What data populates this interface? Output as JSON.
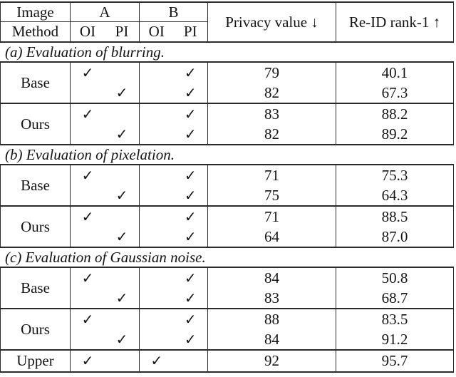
{
  "header": {
    "image_label": "Image",
    "method_label": "Method",
    "group_a_label": "A",
    "group_b_label": "B",
    "oi_label": "OI",
    "pi_label": "PI",
    "privacy_label": "Privacy value ↓",
    "reid_label": "Re-ID rank-1 ↑"
  },
  "sections": [
    {
      "label": "(a) Evaluation of blurring.",
      "groups": [
        {
          "method": "Base",
          "rows": [
            {
              "a_oi": "✓",
              "a_pi": "",
              "b_oi": "",
              "b_pi": "✓",
              "privacy": "79",
              "reid": "40.1"
            },
            {
              "a_oi": "",
              "a_pi": "✓",
              "b_oi": "",
              "b_pi": "✓",
              "privacy": "82",
              "reid": "67.3"
            }
          ]
        },
        {
          "method": "Ours",
          "rows": [
            {
              "a_oi": "✓",
              "a_pi": "",
              "b_oi": "",
              "b_pi": "✓",
              "privacy": "83",
              "reid": "88.2"
            },
            {
              "a_oi": "",
              "a_pi": "✓",
              "b_oi": "",
              "b_pi": "✓",
              "privacy": "82",
              "reid": "89.2"
            }
          ]
        }
      ]
    },
    {
      "label": "(b) Evaluation of pixelation.",
      "groups": [
        {
          "method": "Base",
          "rows": [
            {
              "a_oi": "✓",
              "a_pi": "",
              "b_oi": "",
              "b_pi": "✓",
              "privacy": "71",
              "reid": "75.3"
            },
            {
              "a_oi": "",
              "a_pi": "✓",
              "b_oi": "",
              "b_pi": "✓",
              "privacy": "75",
              "reid": "64.3"
            }
          ]
        },
        {
          "method": "Ours",
          "rows": [
            {
              "a_oi": "✓",
              "a_pi": "",
              "b_oi": "",
              "b_pi": "✓",
              "privacy": "71",
              "reid": "88.5"
            },
            {
              "a_oi": "",
              "a_pi": "✓",
              "b_oi": "",
              "b_pi": "✓",
              "privacy": "64",
              "reid": "87.0"
            }
          ]
        }
      ]
    },
    {
      "label": "(c) Evaluation of Gaussian noise.",
      "groups": [
        {
          "method": "Base",
          "rows": [
            {
              "a_oi": "✓",
              "a_pi": "",
              "b_oi": "",
              "b_pi": "✓",
              "privacy": "84",
              "reid": "50.8"
            },
            {
              "a_oi": "",
              "a_pi": "✓",
              "b_oi": "",
              "b_pi": "✓",
              "privacy": "83",
              "reid": "68.7"
            }
          ]
        },
        {
          "method": "Ours",
          "rows": [
            {
              "a_oi": "✓",
              "a_pi": "",
              "b_oi": "",
              "b_pi": "✓",
              "privacy": "88",
              "reid": "83.5"
            },
            {
              "a_oi": "",
              "a_pi": "✓",
              "b_oi": "",
              "b_pi": "✓",
              "privacy": "84",
              "reid": "91.2"
            }
          ]
        },
        {
          "method": "Upper",
          "rows": [
            {
              "a_oi": "✓",
              "a_pi": "",
              "b_oi": "✓",
              "b_pi": "",
              "privacy": "92",
              "reid": "95.7"
            }
          ]
        }
      ]
    }
  ],
  "colors": {
    "text": "#141414",
    "rule": "#2b2b2b",
    "background": "#ffffff"
  }
}
